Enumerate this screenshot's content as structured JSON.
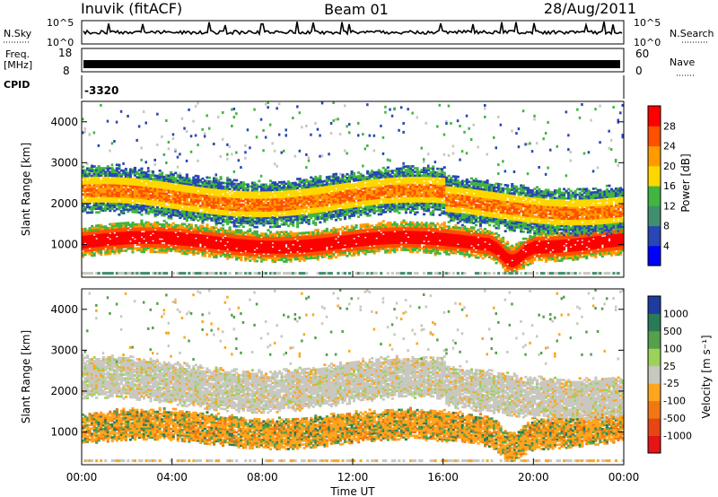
{
  "header": {
    "station": "Inuvik (fitACF)",
    "beam": "Beam 01",
    "date": "28/Aug/2011"
  },
  "top_panels": {
    "nsky_label": "N.Sky",
    "nsky_ticks": [
      "10^5",
      "10^0"
    ],
    "nsearch_label": "N.Search",
    "nsearch_ticks": [
      "10^5",
      "10^0"
    ],
    "freq_label": "Freq.",
    "freq_unit": "[MHz]",
    "freq_ticks": [
      "18",
      "8"
    ],
    "nave_label": "Nave",
    "nave_ticks": [
      "60",
      "0"
    ],
    "cpid_label": "CPID",
    "cpid_value": "-3320"
  },
  "chart_data": [
    {
      "type": "heatmap",
      "panel": "power",
      "xlabel": "",
      "ylabel": "Slant Range [km]",
      "x_range_hours": [
        0,
        24
      ],
      "ylim_km": [
        200,
        4500
      ],
      "yticks": [
        1000,
        2000,
        3000,
        4000
      ],
      "colorbar": {
        "label": "Power [dB]",
        "levels": [
          "4",
          "8",
          "12",
          "16",
          "20",
          "24",
          "28"
        ],
        "colors": [
          "#0000ff",
          "#2846b4",
          "#3f8f6e",
          "#41b441",
          "#ffd700",
          "#ff9b00",
          "#ff5000",
          "#ff0000"
        ]
      },
      "bands": [
        {
          "name": "lower",
          "range_km": [
            800,
            1400
          ],
          "dominant_db": 26
        },
        {
          "name": "upper",
          "range_km": [
            1700,
            2600
          ],
          "dominant_db": 18
        }
      ]
    },
    {
      "type": "heatmap",
      "panel": "velocity",
      "xlabel": "Time UT",
      "ylabel": "Slant Range [km]",
      "x_range_hours": [
        0,
        24
      ],
      "xticks": [
        "00:00",
        "04:00",
        "08:00",
        "12:00",
        "16:00",
        "20:00",
        "00:00"
      ],
      "ylim_km": [
        200,
        4500
      ],
      "yticks": [
        1000,
        2000,
        3000,
        4000
      ],
      "colorbar": {
        "label": "Velocity [m s⁻¹]",
        "levels": [
          "1000",
          "500",
          "100",
          "25",
          "-25",
          "-100",
          "-500",
          "-1000"
        ],
        "colors": [
          "#1e3ca0",
          "#2a7a55",
          "#55a04b",
          "#9bd25a",
          "#c8c8c0",
          "#ffa51e",
          "#f07814",
          "#e64614",
          "#e61414"
        ]
      },
      "bands": [
        {
          "name": "lower",
          "range_km": [
            800,
            1400
          ],
          "dominant_ms": -150
        },
        {
          "name": "upper",
          "range_km": [
            1700,
            2500
          ],
          "dominant_ms": 0
        }
      ]
    }
  ]
}
